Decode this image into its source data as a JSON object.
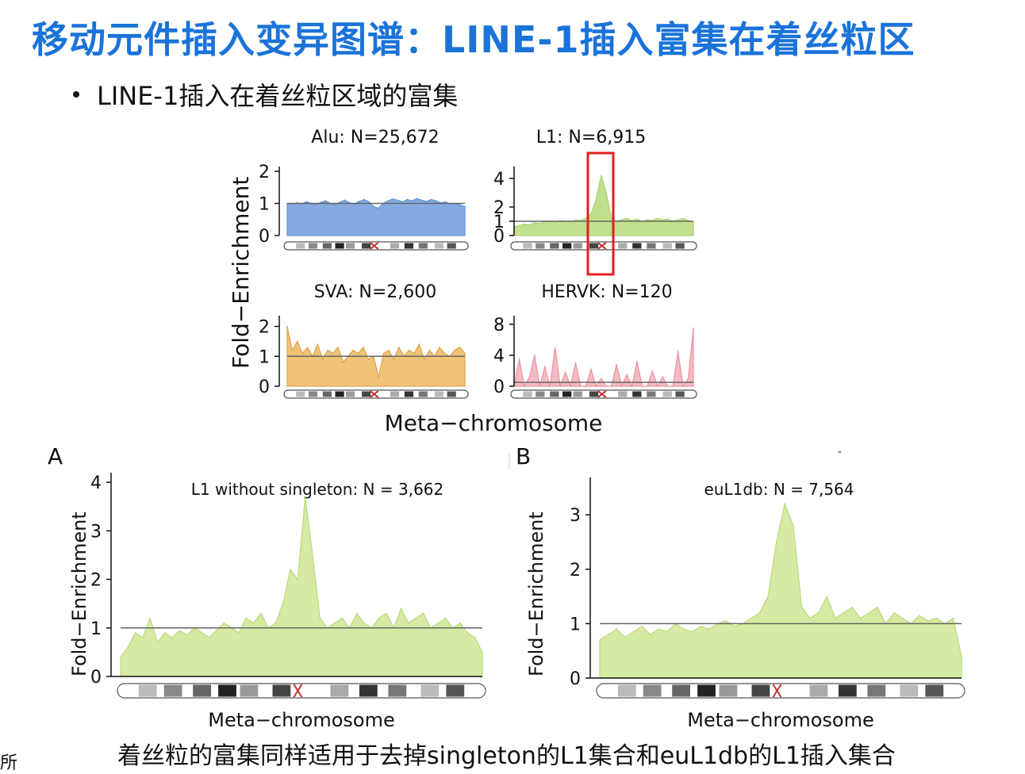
{
  "slide": {
    "title": "移动元件插入变异图谱：LINE-1插入富集在着丝粒区",
    "bullet": "LINE-1插入在着丝粒区域的富集",
    "footer": "着丝粒的富集同样适用于去掉singleton的L1集合和euL1db的L1插入集合",
    "corner_text": "所",
    "small_mark": "-"
  },
  "top_figure": {
    "ylabel": "Fold−Enrichment",
    "xlabel": "Meta−chromosome"
  },
  "chart_data": [
    {
      "id": "alu",
      "type": "area",
      "title": "Alu: N=25,672",
      "yticks": [
        "0",
        "1",
        "2"
      ],
      "ylim": [
        0,
        2
      ],
      "ref_line": 1,
      "color": "#7ea6e0",
      "values": [
        1.0,
        0.95,
        1.02,
        0.98,
        1.05,
        1.0,
        0.97,
        1.03,
        1.08,
        1.0,
        0.96,
        1.04,
        1.1,
        1.02,
        0.98,
        1.06,
        1.12,
        1.05,
        0.9,
        0.85,
        1.0,
        1.08,
        1.14,
        1.1,
        1.05,
        1.12,
        1.08,
        1.15,
        1.1,
        1.06,
        1.12,
        1.08,
        1.02,
        1.05,
        0.98,
        1.0,
        0.95,
        0.9
      ]
    },
    {
      "id": "l1",
      "type": "area",
      "title": "L1: N=6,915",
      "yticks": [
        "0",
        "1",
        "2",
        "4"
      ],
      "ylim": [
        0,
        4.5
      ],
      "ref_line": 1,
      "color": "#bfe08a",
      "highlight": "centromere",
      "values": [
        0.6,
        0.7,
        0.8,
        0.75,
        0.9,
        0.85,
        0.95,
        1.0,
        0.9,
        1.05,
        1.0,
        0.95,
        1.1,
        1.05,
        1.2,
        1.5,
        2.5,
        4.2,
        3.0,
        1.2,
        1.0,
        1.1,
        1.2,
        1.05,
        1.15,
        1.0,
        1.1,
        1.05,
        1.2,
        1.1,
        1.15,
        1.0,
        1.1,
        1.2,
        1.05,
        0.9
      ]
    },
    {
      "id": "sva",
      "type": "area",
      "title": "SVA: N=2,600",
      "yticks": [
        "0",
        "1",
        "2"
      ],
      "ylim": [
        0,
        2.2
      ],
      "ref_line": 1,
      "color": "#f0c070",
      "values": [
        2.0,
        1.2,
        1.5,
        1.1,
        1.3,
        1.0,
        1.4,
        0.9,
        1.2,
        1.1,
        1.3,
        0.8,
        1.0,
        1.2,
        1.1,
        1.3,
        0.9,
        1.0,
        0.3,
        1.1,
        1.2,
        0.9,
        1.3,
        1.0,
        1.2,
        1.1,
        1.4,
        0.9,
        1.2,
        1.0,
        1.3,
        1.1,
        1.0,
        1.2,
        1.3,
        1.1
      ]
    },
    {
      "id": "hervk",
      "type": "area",
      "title": "HERVK: N=120",
      "yticks": [
        "0",
        "4",
        "8"
      ],
      "ylim": [
        0,
        8.5
      ],
      "ref_line": 0.5,
      "color": "#f5b8c0",
      "values": [
        0,
        3.5,
        0,
        1.2,
        4.0,
        0,
        2.5,
        0,
        5.0,
        0,
        1.8,
        0,
        3.0,
        0,
        0,
        2.2,
        0,
        1.0,
        0,
        0,
        2.8,
        0,
        1.5,
        0,
        3.2,
        0,
        0,
        2.0,
        0,
        1.2,
        0,
        0,
        4.5,
        0,
        1.0,
        7.5
      ]
    },
    {
      "id": "A",
      "panel_label": "A",
      "type": "area",
      "title": "L1 without singleton: N = 3,662",
      "ylabel": "Fold−Enrichment",
      "xlabel": "Meta−chromosome",
      "yticks": [
        "0",
        "1",
        "2",
        "3",
        "4"
      ],
      "ylim": [
        0,
        4.1
      ],
      "ref_line": 1,
      "color": "#d3ea9f",
      "values": [
        0.4,
        0.6,
        0.9,
        0.8,
        1.2,
        0.7,
        0.9,
        0.8,
        0.95,
        0.85,
        1.0,
        0.9,
        0.8,
        0.95,
        1.1,
        1.0,
        0.9,
        1.2,
        1.1,
        1.3,
        1.0,
        1.1,
        1.5,
        2.2,
        2.0,
        3.7,
        2.5,
        1.2,
        1.0,
        1.1,
        1.2,
        1.0,
        1.3,
        1.1,
        1.0,
        1.2,
        1.3,
        1.0,
        1.4,
        1.1,
        1.2,
        1.3,
        1.0,
        1.1,
        1.2,
        1.0,
        1.1,
        0.9,
        0.8,
        0.5
      ]
    },
    {
      "id": "B",
      "panel_label": "B",
      "type": "area",
      "title": "euL1db: N = 7,564",
      "ylabel": "Fold−Enrichment",
      "xlabel": "Meta−chromosome",
      "yticks": [
        "0",
        "1",
        "2",
        "3"
      ],
      "ylim": [
        0,
        3.6
      ],
      "ref_line": 1,
      "color": "#d3ea9f",
      "values": [
        0.7,
        0.8,
        0.9,
        0.75,
        0.85,
        0.95,
        0.8,
        0.9,
        0.85,
        1.0,
        0.9,
        0.85,
        0.95,
        0.9,
        1.0,
        1.05,
        0.95,
        1.0,
        1.1,
        1.2,
        1.5,
        2.5,
        3.2,
        2.8,
        1.3,
        1.1,
        1.2,
        1.5,
        1.1,
        1.2,
        1.3,
        1.1,
        1.2,
        1.3,
        1.0,
        1.2,
        1.1,
        1.0,
        1.15,
        1.05,
        1.1,
        1.0,
        1.1,
        0.4
      ]
    }
  ]
}
